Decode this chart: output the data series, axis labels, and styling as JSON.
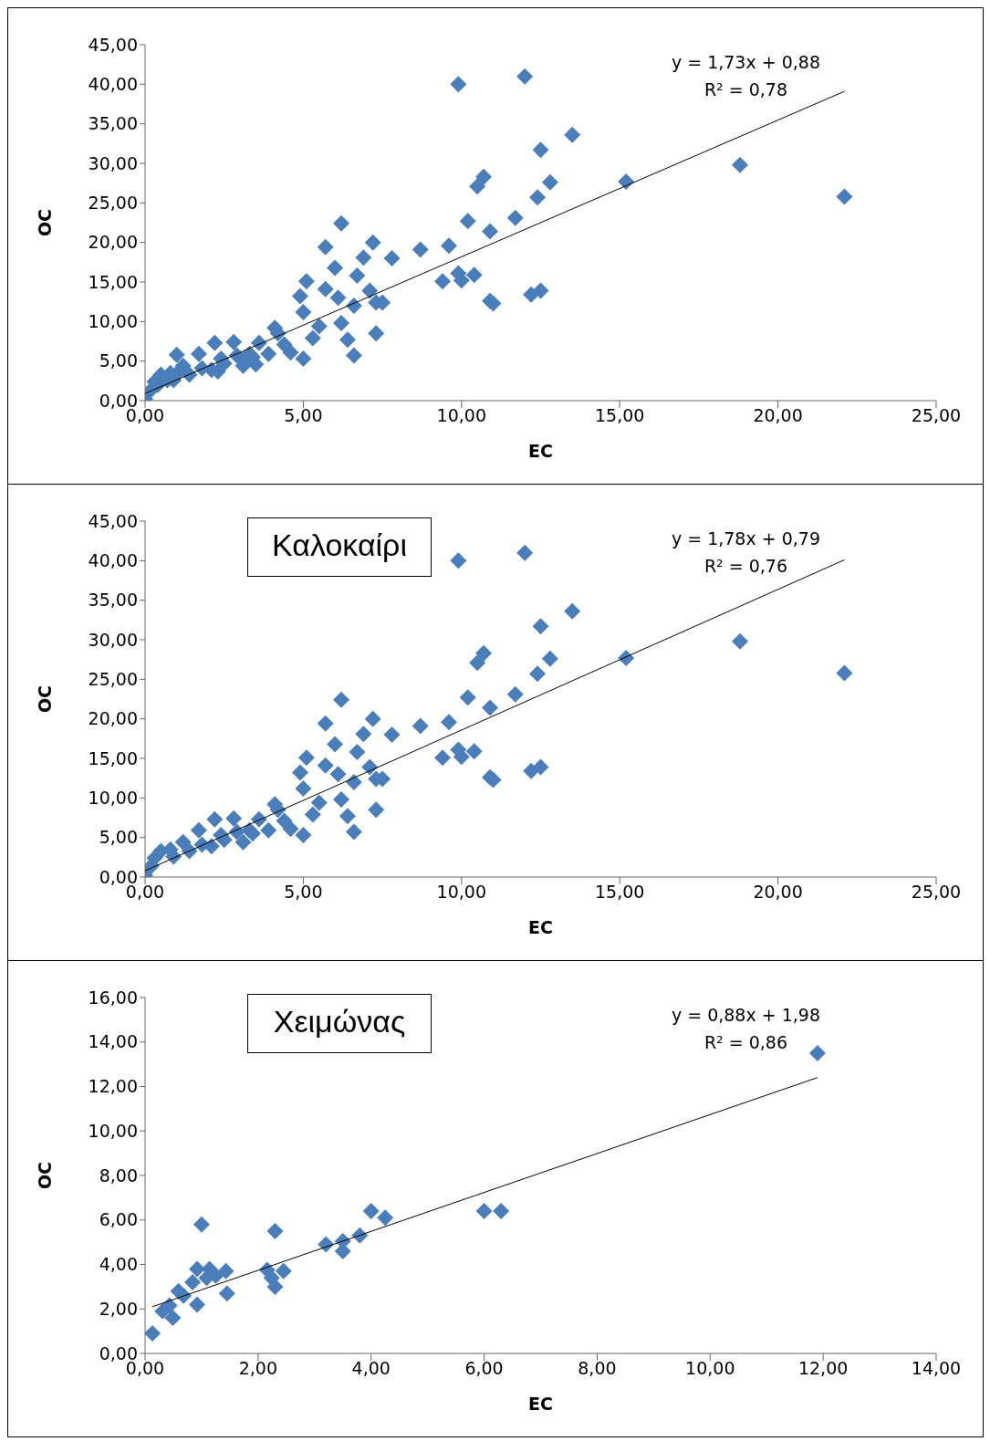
{
  "chart_data": [
    {
      "type": "scatter",
      "xlabel": "EC",
      "ylabel": "OC",
      "marker": "diamond",
      "annotations": [
        "y = 1,73x + 0,88",
        "R² = 0,78"
      ],
      "xlim": [
        0,
        25
      ],
      "xticks": [
        {
          "value": 0,
          "label": "0,00"
        },
        {
          "value": 5,
          "label": "5,00"
        },
        {
          "value": 10,
          "label": "10,00"
        },
        {
          "value": 15,
          "label": "15,00"
        },
        {
          "value": 20,
          "label": "20,00"
        },
        {
          "value": 25,
          "label": "25,00"
        }
      ],
      "ylim": [
        0,
        45
      ],
      "yticks": [
        {
          "value": 0,
          "label": "0,00"
        },
        {
          "value": 5,
          "label": "5,00"
        },
        {
          "value": 10,
          "label": "10,00"
        },
        {
          "value": 15,
          "label": "15,00"
        },
        {
          "value": 20,
          "label": "20,00"
        },
        {
          "value": 25,
          "label": "25,00"
        },
        {
          "value": 30,
          "label": "30,00"
        },
        {
          "value": 35,
          "label": "35,00"
        },
        {
          "value": 40,
          "label": "40,00"
        },
        {
          "value": 45,
          "label": "45,00"
        }
      ],
      "series": [
        {
          "color": "#4a7ebb",
          "x": [
            9.9,
            12,
            13.5,
            12.5,
            12.8,
            12.4,
            11.7,
            10.5,
            10.7,
            10.2,
            10.9,
            15.2,
            18.8,
            22.1,
            9.6,
            8.7,
            7.8,
            7.2,
            6.9,
            6.2,
            5.7,
            6,
            6.7,
            7.1,
            7.3,
            7.5,
            7.3,
            9.4,
            9.9,
            10,
            10.4,
            10.9,
            11,
            12.2,
            12.5,
            5.1,
            4.9,
            5.7,
            5,
            6.6,
            6.1,
            6.2,
            6.4,
            6.6,
            5.3,
            5,
            4.6,
            5.5,
            4.2,
            4.1,
            3.6,
            3.3,
            3.1,
            2.8,
            2.2,
            2.5,
            2.1,
            1.7,
            1.2,
            3.9,
            4.4,
            0.8,
            0.5,
            0.3,
            0.2,
            0,
            0.9,
            1.4,
            1.8,
            2.4,
            2.9,
            3.4,
            1,
            2.3,
            3.2,
            3.5,
            0.4,
            0.7,
            1.1
          ],
          "values": [
            40,
            41,
            33.6,
            31.7,
            27.6,
            25.7,
            23.1,
            27.1,
            28.3,
            22.7,
            21.4,
            27.7,
            29.8,
            25.8,
            19.6,
            19.1,
            18,
            20,
            18.1,
            22.4,
            19.4,
            16.8,
            15.8,
            13.9,
            12.4,
            12.4,
            8.5,
            15.1,
            16.1,
            15.2,
            15.9,
            12.6,
            12.3,
            13.4,
            13.9,
            15.1,
            13.2,
            14.1,
            11.2,
            12,
            13,
            9.8,
            7.7,
            5.7,
            7.9,
            5.3,
            6.1,
            9.4,
            8.5,
            9.2,
            7.3,
            5.9,
            4.4,
            7.4,
            7.3,
            4.7,
            3.9,
            5.9,
            4.4,
            5.9,
            7.1,
            3.5,
            3.3,
            2.4,
            1.4,
            0.2,
            2.6,
            3.3,
            4.1,
            5.3,
            5.7,
            5.5,
            5.8,
            3.7,
            4.9,
            4.6,
            2,
            2.6,
            3.8
          ]
        },
        {
          "type": "line",
          "marker": "none",
          "color": "#000000",
          "x": [
            0,
            22.1
          ],
          "values": [
            0.9,
            39.1
          ]
        }
      ]
    },
    {
      "type": "scatter",
      "title": "Καλοκαίρι",
      "xlabel": "EC",
      "ylabel": "OC",
      "marker": "diamond",
      "annotations": [
        "y = 1,78x + 0,79",
        "R² = 0,76"
      ],
      "xlim": [
        0,
        25
      ],
      "xticks": [
        {
          "value": 0,
          "label": "0,00"
        },
        {
          "value": 5,
          "label": "5,00"
        },
        {
          "value": 10,
          "label": "10,00"
        },
        {
          "value": 15,
          "label": "15,00"
        },
        {
          "value": 20,
          "label": "20,00"
        },
        {
          "value": 25,
          "label": "25,00"
        }
      ],
      "ylim": [
        0,
        45
      ],
      "yticks": [
        {
          "value": 0,
          "label": "0,00"
        },
        {
          "value": 5,
          "label": "5,00"
        },
        {
          "value": 10,
          "label": "10,00"
        },
        {
          "value": 15,
          "label": "15,00"
        },
        {
          "value": 20,
          "label": "20,00"
        },
        {
          "value": 25,
          "label": "25,00"
        },
        {
          "value": 30,
          "label": "30,00"
        },
        {
          "value": 35,
          "label": "35,00"
        },
        {
          "value": 40,
          "label": "40,00"
        },
        {
          "value": 45,
          "label": "45,00"
        }
      ],
      "series": [
        {
          "color": "#4a7ebb",
          "x": [
            9.9,
            12,
            13.5,
            12.5,
            12.8,
            12.4,
            11.7,
            10.5,
            10.7,
            10.2,
            10.9,
            15.2,
            18.8,
            22.1,
            9.6,
            8.7,
            7.8,
            7.2,
            6.9,
            6.2,
            5.7,
            6,
            6.7,
            7.1,
            7.3,
            7.5,
            7.3,
            9.4,
            9.9,
            10,
            10.4,
            10.9,
            11,
            12.2,
            12.5,
            5.1,
            4.9,
            5.7,
            5,
            6.6,
            6.1,
            6.2,
            6.4,
            6.6,
            5.3,
            5,
            4.6,
            5.5,
            4.2,
            4.1,
            3.6,
            3.3,
            3.1,
            2.8,
            2.2,
            2.5,
            2.1,
            1.7,
            1.2,
            3.9,
            4.4,
            0.8,
            0.5,
            0.3,
            0.2,
            0,
            0.9,
            1.4,
            1.8,
            2.4,
            2.9,
            3.4
          ],
          "values": [
            40,
            41,
            33.6,
            31.7,
            27.6,
            25.7,
            23.1,
            27.1,
            28.3,
            22.7,
            21.4,
            27.7,
            29.8,
            25.8,
            19.6,
            19.1,
            18,
            20,
            18.1,
            22.4,
            19.4,
            16.8,
            15.8,
            13.9,
            12.4,
            12.4,
            8.5,
            15.1,
            16.1,
            15.2,
            15.9,
            12.6,
            12.3,
            13.4,
            13.9,
            15.1,
            13.2,
            14.1,
            11.2,
            12,
            13,
            9.8,
            7.7,
            5.7,
            7.9,
            5.3,
            6.1,
            9.4,
            8.5,
            9.2,
            7.3,
            5.9,
            4.4,
            7.4,
            7.3,
            4.7,
            3.9,
            5.9,
            4.4,
            5.9,
            7.1,
            3.5,
            3.3,
            2.4,
            1.4,
            0.2,
            2.6,
            3.3,
            4.1,
            5.3,
            5.7,
            5.5
          ]
        },
        {
          "type": "line",
          "marker": "none",
          "color": "#000000",
          "x": [
            0,
            22.1
          ],
          "values": [
            0.8,
            40.1
          ]
        }
      ]
    },
    {
      "type": "scatter",
      "title": "Χειμώνας",
      "xlabel": "EC",
      "ylabel": "OC",
      "marker": "diamond",
      "annotations": [
        "y = 0,88x + 1,98",
        "R² = 0,86"
      ],
      "xlim": [
        0,
        14
      ],
      "xticks": [
        {
          "value": 0,
          "label": "0,00"
        },
        {
          "value": 2,
          "label": "2,00"
        },
        {
          "value": 4,
          "label": "4,00"
        },
        {
          "value": 6,
          "label": "6,00"
        },
        {
          "value": 8,
          "label": "8,00"
        },
        {
          "value": 10,
          "label": "10,00"
        },
        {
          "value": 12,
          "label": "12,00"
        },
        {
          "value": 14,
          "label": "14,00"
        }
      ],
      "ylim": [
        0,
        16
      ],
      "yticks": [
        {
          "value": 0,
          "label": "0,00"
        },
        {
          "value": 2,
          "label": "2,00"
        },
        {
          "value": 4,
          "label": "4,00"
        },
        {
          "value": 6,
          "label": "6,00"
        },
        {
          "value": 8,
          "label": "8,00"
        },
        {
          "value": 10,
          "label": "10,00"
        },
        {
          "value": 12,
          "label": "12,00"
        },
        {
          "value": 14,
          "label": "14,00"
        },
        {
          "value": 16,
          "label": "16,00"
        }
      ],
      "series": [
        {
          "color": "#4a7ebb",
          "x": [
            11.9,
            1,
            2.3,
            4,
            4.25,
            6,
            6.3,
            3.2,
            3.5,
            3.5,
            3.8,
            1.45,
            1.43,
            1.14,
            0.92,
            2.16,
            2.45,
            2.3,
            2.24,
            0.92,
            0.59,
            0.43,
            0.49,
            0.31,
            0.13,
            0.68,
            0.84,
            1.09,
            1.25
          ],
          "values": [
            13.5,
            5.8,
            5.5,
            6.4,
            6.1,
            6.4,
            6.4,
            4.9,
            4.6,
            5.05,
            5.3,
            2.7,
            3.7,
            3.8,
            3.8,
            3.75,
            3.7,
            3,
            3.4,
            2.2,
            2.8,
            2.15,
            1.6,
            1.9,
            0.9,
            2.6,
            3.2,
            3.4,
            3.5
          ]
        },
        {
          "type": "line",
          "marker": "none",
          "color": "#000000",
          "x": [
            0.13,
            11.9
          ],
          "values": [
            2.1,
            12.4
          ]
        }
      ]
    }
  ]
}
